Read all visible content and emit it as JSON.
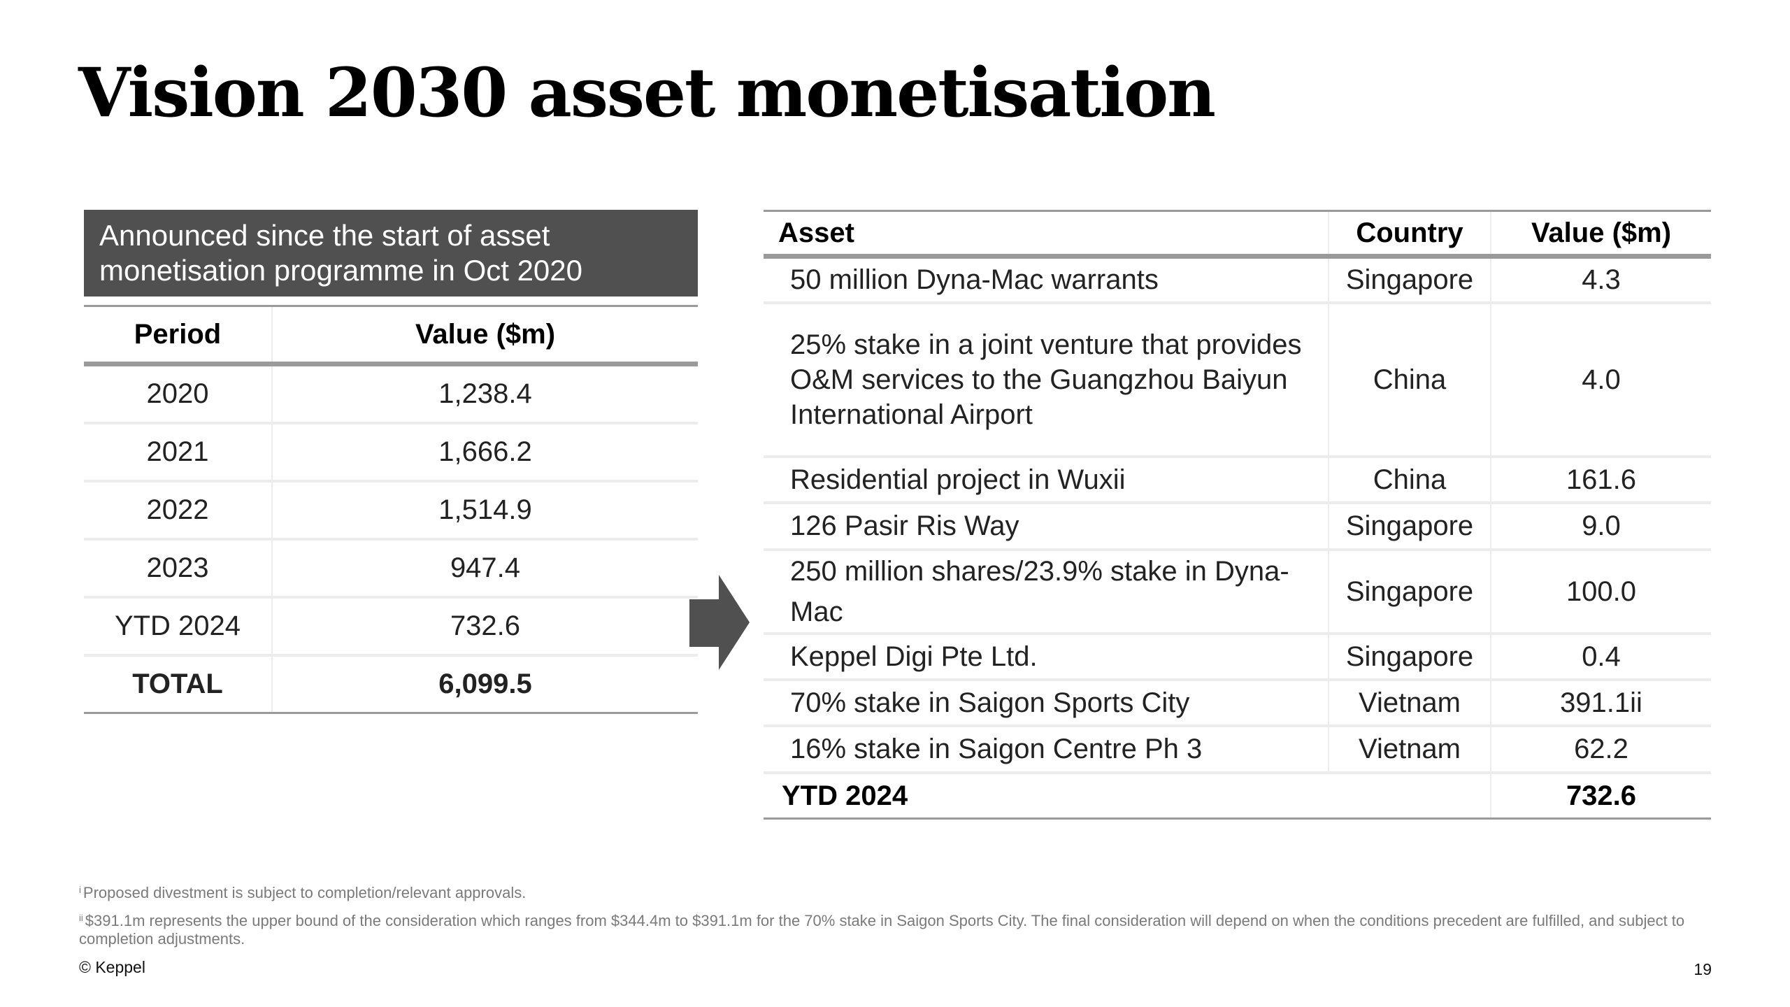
{
  "title": "Vision 2030 asset monetisation",
  "left_table": {
    "header_banner": "Announced since the start of asset monetisation programme in Oct 2020",
    "columns": [
      "Period",
      "Value ($m)"
    ],
    "rows": [
      {
        "period": "2020",
        "value": "1,238.4"
      },
      {
        "period": "2021",
        "value": "1,666.2"
      },
      {
        "period": "2022",
        "value": "1,514.9"
      },
      {
        "period": "2023",
        "value": "947.4"
      },
      {
        "period": "YTD 2024",
        "value": "732.6"
      }
    ],
    "total": {
      "label": "TOTAL",
      "value": "6,099.5"
    }
  },
  "arrow": {
    "icon": "right-arrow-icon",
    "color": "#505050"
  },
  "right_table": {
    "columns": [
      "Asset",
      "Country",
      "Value ($m)"
    ],
    "rows": [
      {
        "asset": "50 million Dyna-Mac warrants",
        "country": "Singapore",
        "value": "4.3"
      },
      {
        "asset": "25% stake in a joint venture that provides O&M services to the Guangzhou Baiyun International Airport",
        "country": "China",
        "value": "4.0"
      },
      {
        "asset": "Residential project in Wuxii",
        "country": "China",
        "value": "161.6"
      },
      {
        "asset": "126 Pasir Ris Way",
        "country": "Singapore",
        "value": "9.0"
      },
      {
        "asset": "250 million shares/23.9% stake in Dyna-Mac",
        "country": "Singapore",
        "value": "100.0"
      },
      {
        "asset": "Keppel Digi Pte Ltd.",
        "country": "Singapore",
        "value": "0.4"
      },
      {
        "asset": "70% stake in Saigon Sports City",
        "country": "Vietnam",
        "value": "391.1ii"
      },
      {
        "asset": "16% stake in Saigon Centre Ph 3",
        "country": "Vietnam",
        "value": "62.2"
      }
    ],
    "total": {
      "label": "YTD 2024",
      "value": "732.6"
    }
  },
  "footnotes": [
    {
      "marker": "i",
      "text": "Proposed divestment is subject to completion/relevant approvals."
    },
    {
      "marker": "ii",
      "text": "$391.1m represents the upper bound of the consideration which ranges from $344.4m to $391.1m for the 70% stake in Saigon Sports City. The final consideration will depend on when the conditions precedent are fulfilled, and subject to completion adjustments."
    }
  ],
  "footer": {
    "copyright": "© Keppel",
    "page_number": "19"
  },
  "colors": {
    "banner": "#505050",
    "rule": "#9a9a9a",
    "grid": "#ececec",
    "footnote": "#7a7a7a"
  }
}
